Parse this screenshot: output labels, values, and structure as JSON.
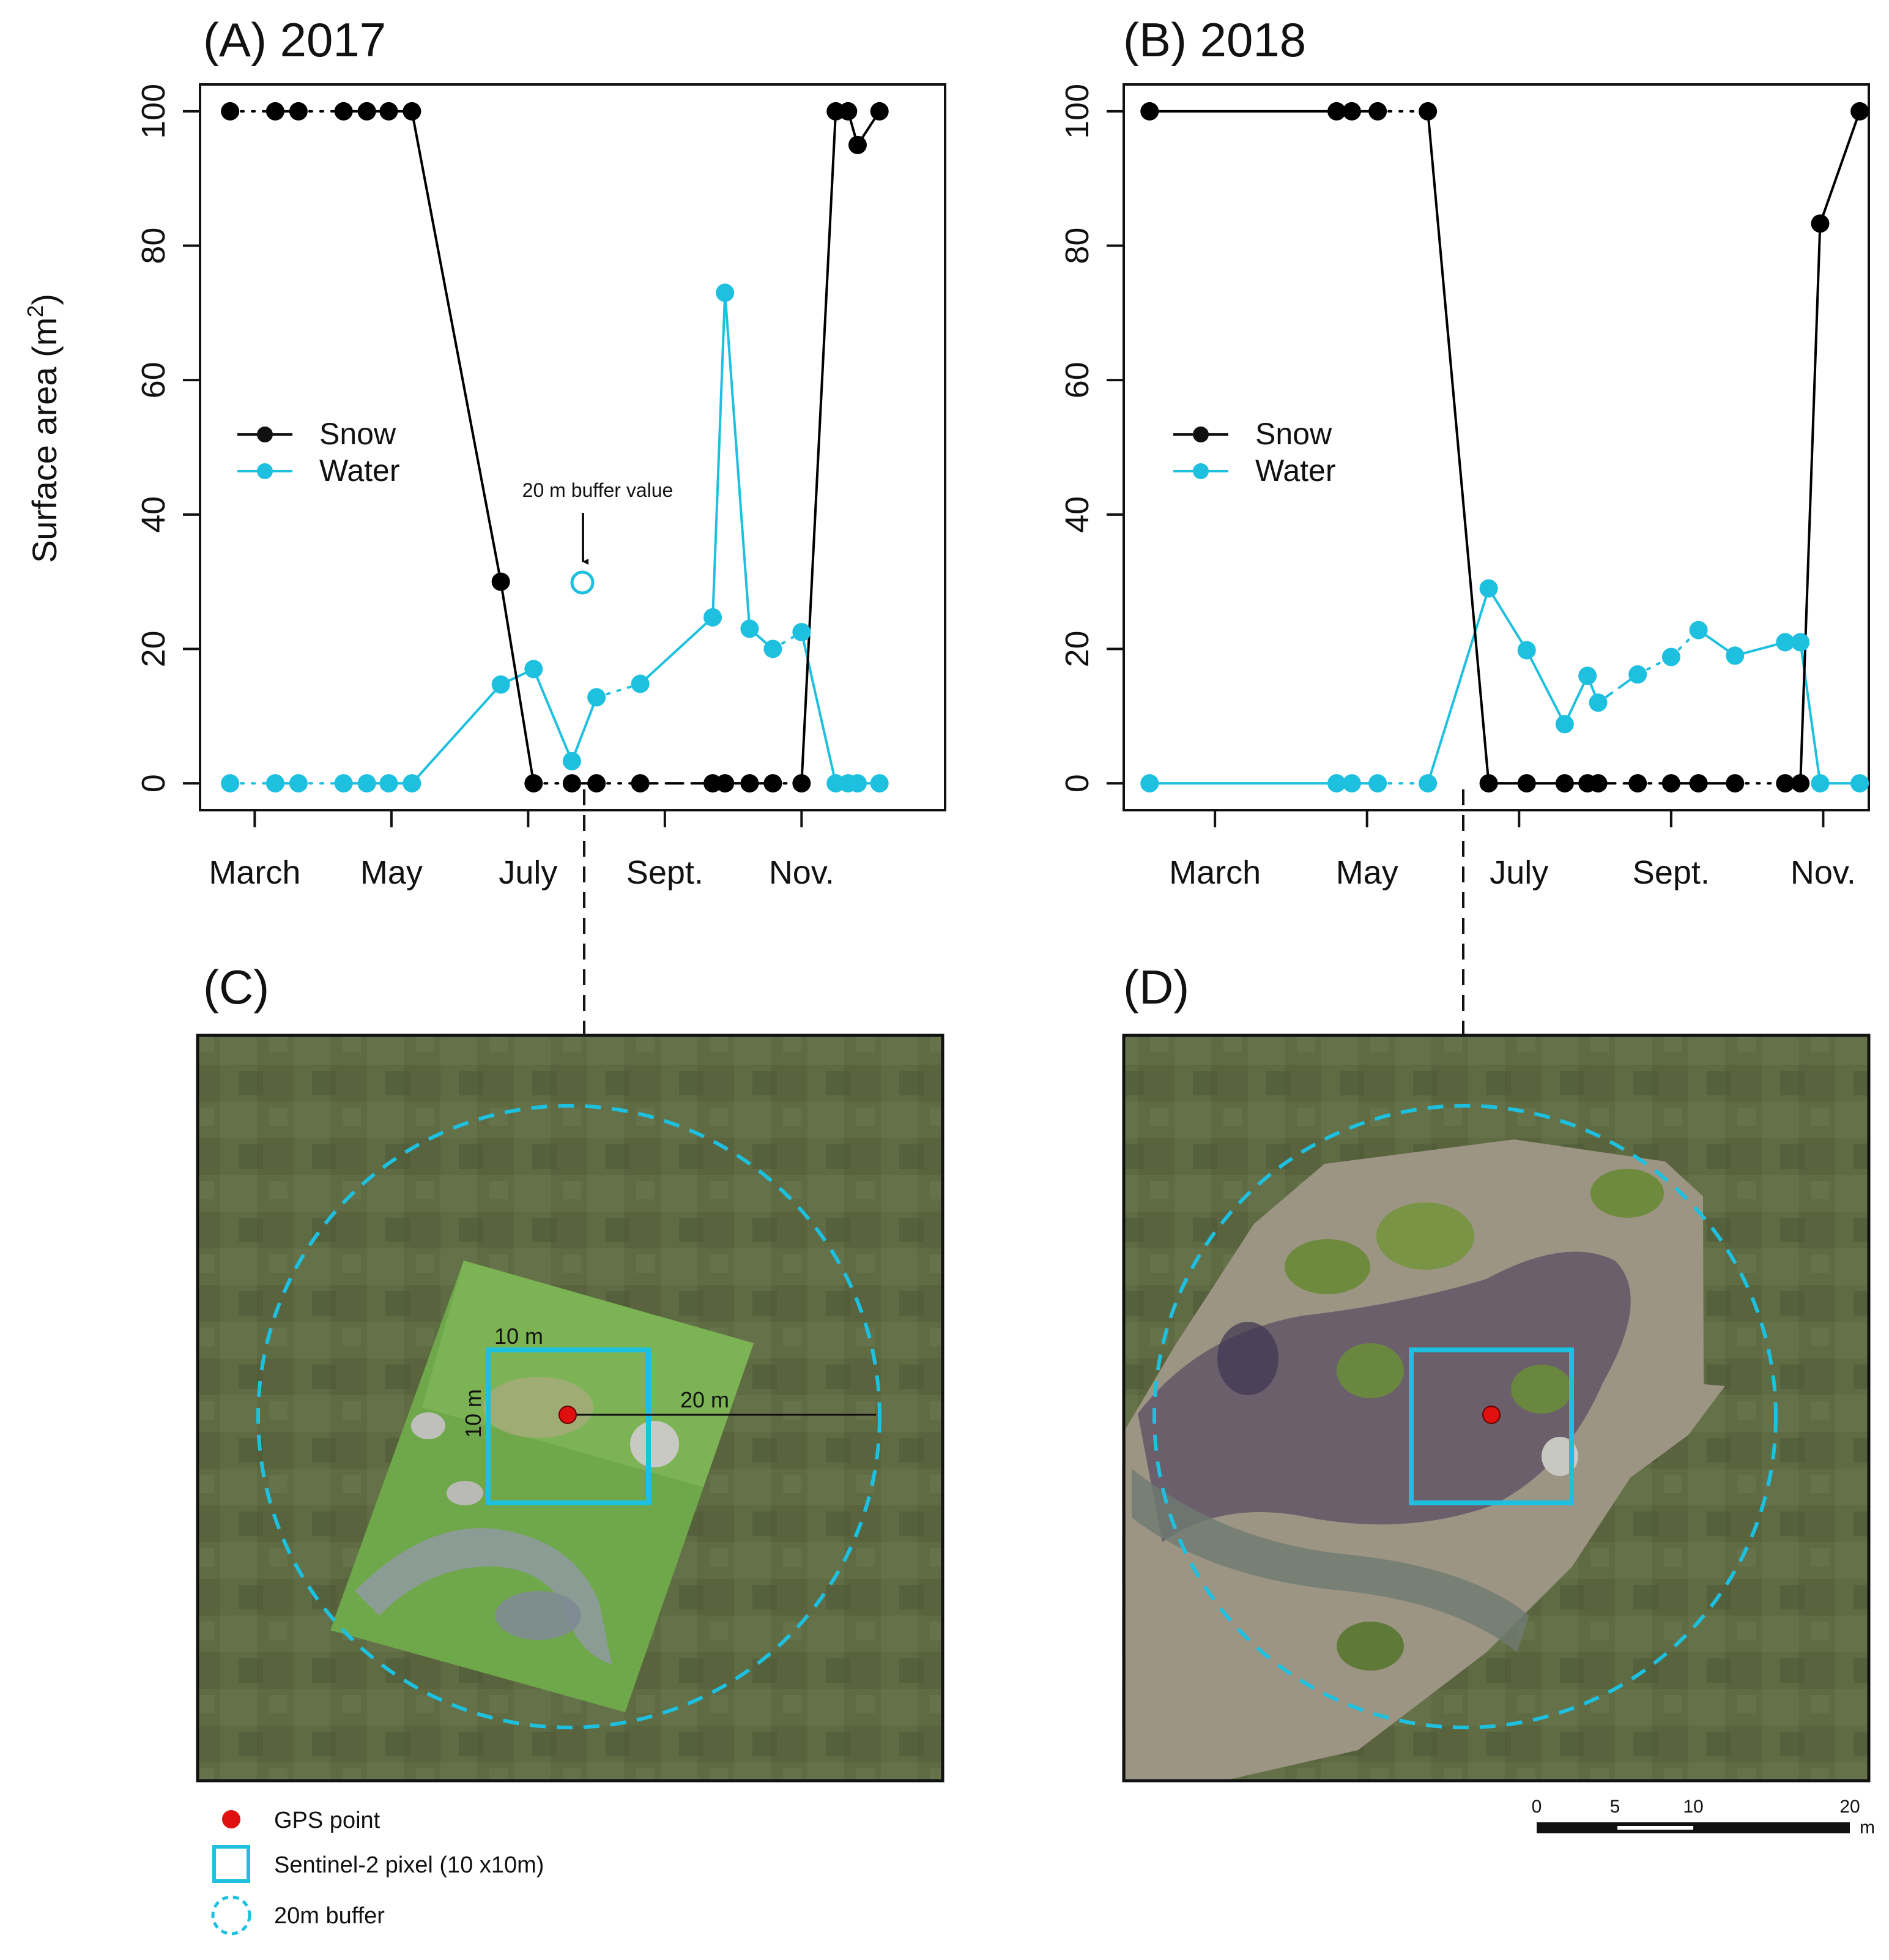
{
  "colors": {
    "snow": "#000000",
    "water": "#1ec0e0",
    "gps": "#e01010",
    "map_bg": "#5f6b43"
  },
  "chart_data": [
    {
      "type": "line",
      "title": "(A) 2017",
      "xlabel": "",
      "ylabel": "Surface area (m²)",
      "ylabel_text": "Surface area (m",
      "ylabel_sup": "2",
      "ylabel_close": ")",
      "xlim": [
        1.6,
        7.05
      ],
      "ylim": [
        -4,
        104
      ],
      "x_ticks": [
        2,
        3,
        4,
        5,
        6
      ],
      "x_tick_labels": [
        "March",
        "May",
        "July",
        "Sept.",
        "Nov."
      ],
      "y_ticks": [
        0,
        20,
        40,
        60,
        80,
        100
      ],
      "y_tick_labels": [
        "0",
        "20",
        "40",
        "60",
        "80",
        "100"
      ],
      "legend": {
        "position": "left-middle",
        "entries": [
          "Snow",
          "Water"
        ]
      },
      "series": [
        {
          "name": "Snow",
          "x": [
            1.82,
            2.15,
            2.32,
            2.65,
            2.82,
            2.98,
            3.15,
            3.8,
            4.04,
            4.32,
            4.5,
            4.82,
            5.35,
            5.44,
            5.62,
            5.79,
            6.0,
            6.25,
            6.34,
            6.41,
            6.57
          ],
          "y": [
            100,
            100,
            100,
            100,
            100,
            100,
            100,
            30,
            0,
            0,
            0,
            0,
            0,
            0,
            0,
            0,
            0,
            100,
            100,
            95,
            100
          ],
          "segments": [
            [
              0,
              1,
              "dotted"
            ],
            [
              1,
              2,
              "solid"
            ],
            [
              2,
              3,
              "dotted"
            ],
            [
              3,
              4,
              "solid"
            ],
            [
              4,
              5,
              "solid"
            ],
            [
              5,
              6,
              "solid"
            ],
            [
              6,
              7,
              "solid"
            ],
            [
              7,
              8,
              "solid"
            ],
            [
              8,
              9,
              "dotted"
            ],
            [
              9,
              10,
              "solid"
            ],
            [
              10,
              11,
              "dotted"
            ],
            [
              11,
              12,
              "dashed"
            ],
            [
              12,
              13,
              "solid"
            ],
            [
              13,
              14,
              "solid"
            ],
            [
              14,
              15,
              "solid"
            ],
            [
              15,
              16,
              "dotted"
            ],
            [
              16,
              17,
              "solid"
            ],
            [
              17,
              18,
              "solid"
            ],
            [
              18,
              19,
              "solid"
            ],
            [
              19,
              20,
              "solid"
            ]
          ]
        },
        {
          "name": "Water",
          "x": [
            1.82,
            2.15,
            2.32,
            2.65,
            2.82,
            2.98,
            3.15,
            3.8,
            4.04,
            4.32,
            4.5,
            4.82,
            5.35,
            5.44,
            5.62,
            5.79,
            6.0,
            6.25,
            6.34,
            6.41,
            6.57
          ],
          "y": [
            0,
            0,
            0,
            0,
            0,
            0,
            0,
            14.7,
            17,
            3.3,
            12.8,
            14.8,
            24.7,
            73,
            23,
            20,
            22.5,
            0,
            0,
            0,
            0
          ],
          "segments": [
            [
              0,
              1,
              "dotted"
            ],
            [
              1,
              2,
              "solid"
            ],
            [
              2,
              3,
              "dotted"
            ],
            [
              3,
              4,
              "solid"
            ],
            [
              4,
              5,
              "solid"
            ],
            [
              5,
              6,
              "solid"
            ],
            [
              6,
              7,
              "solid"
            ],
            [
              7,
              8,
              "solid"
            ],
            [
              8,
              9,
              "solid"
            ],
            [
              9,
              10,
              "solid"
            ],
            [
              10,
              11,
              "dotted"
            ],
            [
              11,
              12,
              "solid"
            ],
            [
              12,
              13,
              "solid"
            ],
            [
              13,
              14,
              "solid"
            ],
            [
              14,
              15,
              "solid"
            ],
            [
              15,
              16,
              "dotted"
            ],
            [
              16,
              17,
              "solid"
            ],
            [
              17,
              18,
              "solid"
            ],
            [
              18,
              19,
              "solid"
            ],
            [
              19,
              20,
              "solid"
            ]
          ]
        }
      ],
      "annotation": {
        "text": "20 m buffer value",
        "x": 4.32,
        "y": 31.3
      }
    },
    {
      "type": "line",
      "title": "(B) 2018",
      "xlabel": "",
      "ylabel": "",
      "xlim": [
        1.4,
        6.3
      ],
      "ylim": [
        -4,
        104
      ],
      "x_ticks": [
        2,
        3,
        4,
        5,
        6
      ],
      "x_tick_labels": [
        "March",
        "May",
        "July",
        "Sept.",
        "Nov."
      ],
      "y_ticks": [
        0,
        20,
        40,
        60,
        80,
        100
      ],
      "y_tick_labels": [
        "0",
        "20",
        "40",
        "60",
        "80",
        "100"
      ],
      "legend": {
        "position": "left-middle",
        "entries": [
          "Snow",
          "Water"
        ]
      },
      "series": [
        {
          "name": "Snow",
          "x": [
            1.57,
            2.8,
            2.9,
            3.07,
            3.4,
            3.8,
            4.05,
            4.3,
            4.45,
            4.52,
            4.78,
            5.0,
            5.18,
            5.42,
            5.75,
            5.85,
            5.98,
            6.24
          ],
          "y": [
            100,
            100,
            100,
            100,
            100,
            0,
            0,
            0,
            0,
            0,
            0,
            0,
            0,
            0,
            0,
            0,
            83.3,
            100
          ],
          "segments": [
            [
              0,
              1,
              "solid"
            ],
            [
              1,
              2,
              "solid"
            ],
            [
              2,
              3,
              "solid"
            ],
            [
              3,
              4,
              "dotted"
            ],
            [
              4,
              5,
              "solid"
            ],
            [
              5,
              6,
              "solid"
            ],
            [
              6,
              7,
              "solid"
            ],
            [
              7,
              8,
              "solid"
            ],
            [
              8,
              9,
              "solid"
            ],
            [
              9,
              10,
              "dashed"
            ],
            [
              10,
              11,
              "dotted"
            ],
            [
              11,
              12,
              "solid"
            ],
            [
              12,
              13,
              "solid"
            ],
            [
              13,
              14,
              "dotted"
            ],
            [
              14,
              15,
              "solid"
            ],
            [
              15,
              16,
              "solid"
            ],
            [
              16,
              17,
              "solid"
            ]
          ]
        },
        {
          "name": "Water",
          "x": [
            1.57,
            2.8,
            2.9,
            3.07,
            3.4,
            3.8,
            4.05,
            4.3,
            4.45,
            4.52,
            4.78,
            5.0,
            5.18,
            5.42,
            5.75,
            5.85,
            5.98,
            6.24
          ],
          "y": [
            0,
            0,
            0,
            0,
            0,
            29,
            19.8,
            8.8,
            16,
            12,
            16.2,
            18.8,
            22.8,
            19,
            21,
            21,
            0,
            0
          ],
          "segments": [
            [
              0,
              1,
              "solid"
            ],
            [
              1,
              2,
              "solid"
            ],
            [
              2,
              3,
              "solid"
            ],
            [
              3,
              4,
              "dotted"
            ],
            [
              4,
              5,
              "solid"
            ],
            [
              5,
              6,
              "solid"
            ],
            [
              6,
              7,
              "solid"
            ],
            [
              7,
              8,
              "solid"
            ],
            [
              8,
              9,
              "solid"
            ],
            [
              9,
              10,
              "dashed"
            ],
            [
              10,
              11,
              "dotted"
            ],
            [
              11,
              12,
              "dotted"
            ],
            [
              12,
              13,
              "solid"
            ],
            [
              13,
              14,
              "solid"
            ],
            [
              14,
              15,
              "solid"
            ],
            [
              15,
              16,
              "solid"
            ],
            [
              16,
              17,
              "solid"
            ]
          ]
        }
      ]
    }
  ],
  "maps": {
    "panel_c": {
      "title": "(C)",
      "label_10m_top": "10 m",
      "label_10m_side": "10 m",
      "label_20m": "20 m"
    },
    "panel_d": {
      "title": "(D)"
    },
    "key": {
      "gps_point": "GPS point",
      "pixel": "Sentinel-2 pixel (10 x10m)",
      "buffer": "20m buffer"
    },
    "scale_bar": {
      "ticks": [
        "0",
        "5",
        "10",
        "20"
      ],
      "unit": "m"
    }
  }
}
